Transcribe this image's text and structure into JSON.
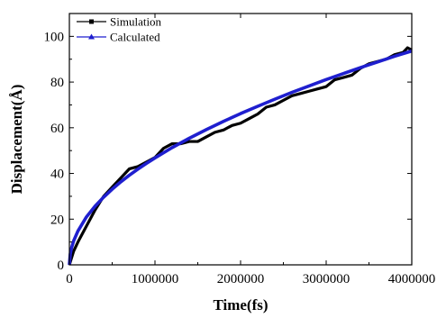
{
  "chart_data": {
    "type": "line",
    "title": "",
    "xlabel": "Time(fs)",
    "ylabel": "Displacement(Å)",
    "xlim": [
      0,
      4000000
    ],
    "ylim": [
      0,
      110
    ],
    "x_ticks": [
      0,
      1000000,
      2000000,
      3000000,
      4000000
    ],
    "x_tick_labels": [
      "0",
      "1000000",
      "2000000",
      "3000000",
      "4000000"
    ],
    "y_ticks": [
      0,
      20,
      40,
      60,
      80,
      100
    ],
    "y_tick_labels": [
      "0",
      "20",
      "40",
      "60",
      "80",
      "100"
    ],
    "legend_position": "top-left",
    "grid": false,
    "series": [
      {
        "name": "Simulation",
        "color": "#000000",
        "marker": "square",
        "x": [
          0,
          50000,
          100000,
          200000,
          300000,
          400000,
          500000,
          600000,
          700000,
          800000,
          900000,
          1000000,
          1100000,
          1200000,
          1300000,
          1400000,
          1500000,
          1600000,
          1700000,
          1800000,
          1900000,
          2000000,
          2100000,
          2200000,
          2300000,
          2400000,
          2500000,
          2600000,
          2700000,
          2800000,
          2900000,
          3000000,
          3100000,
          3200000,
          3300000,
          3400000,
          3500000,
          3600000,
          3700000,
          3800000,
          3900000,
          3950000,
          4000000
        ],
        "y": [
          0,
          6,
          10,
          17,
          24,
          30,
          34,
          38,
          42,
          43,
          45,
          47,
          51,
          53,
          53,
          54,
          54,
          56,
          58,
          59,
          61,
          62,
          64,
          66,
          69,
          70,
          72,
          74,
          75,
          76,
          77,
          78,
          81,
          82,
          83,
          86,
          88,
          89,
          90,
          92,
          93,
          95,
          94
        ]
      },
      {
        "name": "Calculated",
        "color": "#1f1fcf",
        "marker": "triangle",
        "x": [
          0,
          10000,
          25000,
          50000,
          100000,
          200000,
          300000,
          400000,
          500000,
          600000,
          700000,
          800000,
          900000,
          1000000,
          1200000,
          1400000,
          1600000,
          1800000,
          2000000,
          2200000,
          2400000,
          2600000,
          2800000,
          3000000,
          3200000,
          3400000,
          3600000,
          3800000,
          4000000
        ],
        "y": [
          0,
          4.7,
          7.4,
          10.5,
          14.8,
          21,
          25.7,
          29.6,
          33.1,
          36.3,
          39.2,
          41.9,
          44.4,
          46.8,
          51.3,
          55.4,
          59.2,
          62.8,
          66.2,
          69.4,
          72.5,
          75.5,
          78.3,
          81.1,
          83.7,
          86.3,
          88.8,
          91.3,
          93.6
        ]
      }
    ]
  }
}
